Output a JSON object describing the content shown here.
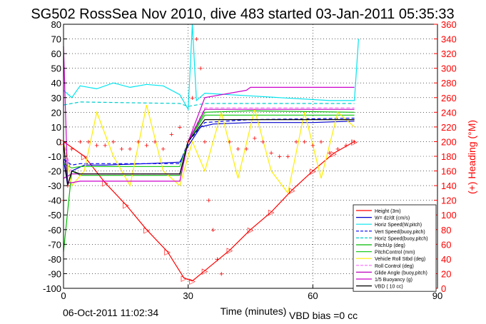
{
  "chart_data": {
    "type": "line",
    "title": "SG502 RossSea Nov 2010, dive 483 started 03-Jan-2011 05:35:33",
    "xlabel": "Time (minutes)",
    "ylabel_right": "(+) Heading (°M)",
    "footer_left": "06-Oct-2011 11:02:34",
    "footer_right": "VBD bias =0 cc",
    "xlim": [
      0,
      90
    ],
    "ylim": [
      -100,
      80
    ],
    "y2lim": [
      0,
      360
    ],
    "xticks": [
      0,
      30,
      60,
      90
    ],
    "yticks": [
      -100,
      -90,
      -80,
      -70,
      -60,
      -50,
      -40,
      -30,
      -20,
      -10,
      0,
      10,
      20,
      30,
      40,
      50,
      60,
      70,
      80
    ],
    "y2ticks": [
      0,
      20,
      40,
      60,
      80,
      100,
      120,
      140,
      160,
      180,
      200,
      220,
      240,
      260,
      280,
      300,
      320,
      340,
      360
    ],
    "grid": true,
    "legend_position": "bottom-right",
    "colors": {
      "height": "#ff0000",
      "w": "#0000cc",
      "horz": "#00e5ee",
      "vert": "#0000ff",
      "horz_buoy": "#00cccc",
      "pitchup": "#00bb00",
      "pitchctl": "#22cc22",
      "roll": "#ffee00",
      "rollctl": "#ff66ff",
      "glide": "#bb00bb",
      "buoy": "#cc00cc",
      "vbd": "#000000",
      "heading": "#ff0000"
    },
    "series": [
      {
        "name": "Height (3m)",
        "key": "height",
        "style": "line-markers",
        "x": [
          0,
          5,
          10,
          15,
          20,
          25,
          29,
          31,
          34,
          40,
          45,
          50,
          55,
          60,
          65,
          70
        ],
        "y": [
          0,
          -10,
          -28,
          -43,
          -60,
          -75,
          -93,
          -95,
          -88,
          -74,
          -60,
          -48,
          -33,
          -20,
          -8,
          0
        ]
      },
      {
        "name": "W= dz/dt (cm/s)",
        "key": "w",
        "style": "line",
        "x": [
          0,
          1,
          2,
          5,
          10,
          20,
          28,
          30,
          33,
          36,
          45,
          60,
          70
        ],
        "y": [
          -12,
          -30,
          -20,
          -16,
          -16,
          -15,
          -14,
          -3,
          10,
          12,
          13,
          13,
          14
        ]
      },
      {
        "name": "Horiz Speed(W,pitch)",
        "key": "horz",
        "style": "line",
        "x": [
          0,
          2,
          4,
          8,
          12,
          16,
          20,
          24,
          28,
          30,
          31,
          32,
          34,
          40,
          46,
          52,
          58,
          64,
          70,
          71
        ],
        "y": [
          35,
          30,
          38,
          36,
          40,
          37,
          39,
          38,
          32,
          22,
          80,
          28,
          33,
          32,
          31,
          30,
          29,
          28,
          28,
          70
        ]
      },
      {
        "name": "Vert Speed(buoy,pitch)",
        "key": "vert",
        "style": "dashed",
        "x": [
          0,
          2,
          4,
          28,
          30,
          34,
          45,
          70
        ],
        "y": [
          -12,
          -16,
          -15,
          -15,
          0,
          13,
          15,
          16
        ]
      },
      {
        "name": "Horiz Speed(buoy,pitch)",
        "key": "horz_buoy",
        "style": "dashed",
        "x": [
          0,
          2,
          4,
          28,
          30,
          34,
          45,
          70
        ],
        "y": [
          25,
          26,
          27,
          26,
          24,
          26,
          26,
          26
        ]
      },
      {
        "name": "PitchUp (deg)",
        "key": "pitchup",
        "style": "line",
        "x": [
          0,
          2,
          4,
          28,
          30,
          34,
          45,
          70
        ],
        "y": [
          -75,
          -20,
          -23,
          -23,
          0,
          20,
          21,
          20
        ]
      },
      {
        "name": "PitchControl (mm)",
        "key": "pitchctl",
        "style": "line",
        "x": [
          0,
          2,
          4,
          28,
          30,
          34,
          45,
          70
        ],
        "y": [
          -15,
          -18,
          -17,
          -17,
          0,
          18,
          18,
          18
        ]
      },
      {
        "name": "Vehicle Roll Stbd (deg)",
        "key": "roll",
        "style": "line",
        "x": [
          0,
          2,
          5,
          8,
          12,
          16,
          20,
          24,
          28,
          31,
          34,
          38,
          42,
          46,
          50,
          54,
          58,
          62,
          66,
          70
        ],
        "y": [
          0,
          -30,
          -20,
          20,
          -10,
          -30,
          25,
          -20,
          -30,
          0,
          -20,
          20,
          -25,
          22,
          -20,
          -35,
          20,
          -25,
          20,
          10
        ]
      },
      {
        "name": "Roll Control (deg)",
        "key": "rollctl",
        "style": "dashed",
        "x": [
          0,
          2,
          4,
          28,
          30,
          34,
          45,
          70
        ],
        "y": [
          0,
          -22,
          -22,
          -22,
          0,
          23,
          23,
          23
        ]
      },
      {
        "name": "Glide Angle (buoy,pitch)",
        "key": "glide",
        "style": "line",
        "x": [
          0,
          2,
          4,
          28,
          30,
          34,
          45,
          70
        ],
        "y": [
          -25,
          -22,
          -22,
          -22,
          0,
          22,
          22,
          22
        ]
      },
      {
        "name": "1/5 Buoyancy (g)",
        "key": "buoy",
        "style": "line",
        "x": [
          0,
          1,
          2,
          4,
          28,
          30,
          34,
          44,
          45,
          70
        ],
        "y": [
          65,
          -28,
          -28,
          -27,
          -27,
          0,
          30,
          35,
          37,
          37
        ]
      },
      {
        "name": "VBD ( 10 cc)",
        "key": "vbd",
        "style": "line",
        "x": [
          0,
          1,
          2,
          4,
          28,
          30,
          34,
          45,
          70
        ],
        "y": [
          0,
          -30,
          -20,
          -22,
          -22,
          0,
          15,
          15,
          15
        ]
      },
      {
        "name": "Heading",
        "key": "heading",
        "style": "markers",
        "axis": "right",
        "x": [
          0,
          1,
          2,
          4,
          6,
          8,
          10,
          12,
          14,
          16,
          18,
          20,
          22,
          24,
          26,
          28,
          30,
          31,
          32,
          33,
          34,
          35,
          36,
          37,
          38,
          40,
          42,
          44,
          46,
          48,
          50,
          52,
          54,
          56,
          58,
          60,
          62,
          64,
          66,
          68,
          70
        ],
        "y": [
          120,
          140,
          190,
          200,
          200,
          195,
          195,
          200,
          190,
          190,
          200,
          195,
          200,
          190,
          210,
          220,
          200,
          260,
          340,
          300,
          200,
          120,
          80,
          40,
          20,
          200,
          190,
          190,
          205,
          200,
          185,
          180,
          180,
          200,
          200,
          195,
          200,
          185,
          190,
          195,
          200
        ]
      }
    ]
  }
}
